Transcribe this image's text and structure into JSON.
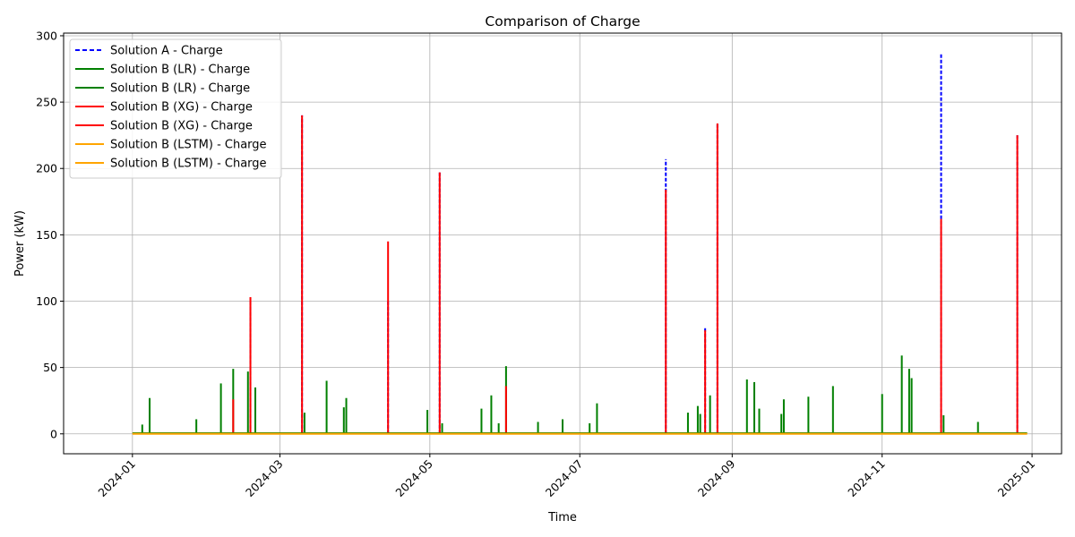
{
  "chart_data": {
    "type": "line",
    "title": "Comparison of Charge",
    "xlabel": "Time",
    "ylabel": "Power (kW)",
    "x_axis": {
      "kind": "date",
      "range": [
        "2023-12-04",
        "2025-01-13"
      ],
      "ticks": [
        "2024-01-01",
        "2024-03-01",
        "2024-05-01",
        "2024-07-01",
        "2024-09-01",
        "2024-11-01",
        "2025-01-01"
      ],
      "tick_labels": [
        "2024-01",
        "2024-03",
        "2024-05",
        "2024-07",
        "2024-09",
        "2024-11",
        "2025-01"
      ]
    },
    "y_axis": {
      "range": [
        -15,
        302
      ],
      "ticks": [
        0,
        50,
        100,
        150,
        200,
        250,
        300
      ],
      "tick_labels": [
        "0",
        "50",
        "100",
        "150",
        "200",
        "250",
        "300"
      ]
    },
    "grid": true,
    "legend_position": "upper-left",
    "legend": [
      {
        "label": "Solution A - Charge",
        "color": "#0000ff",
        "dash": true
      },
      {
        "label": "Solution B (LR) - Charge",
        "color": "#008000",
        "dash": false
      },
      {
        "label": "Solution B (LR) - Charge",
        "color": "#008000",
        "dash": false
      },
      {
        "label": "Solution B (XG) - Charge",
        "color": "#ff0000",
        "dash": false
      },
      {
        "label": "Solution B (XG) - Charge",
        "color": "#ff0000",
        "dash": false
      },
      {
        "label": "Solution B (LSTM) - Charge",
        "color": "#ffa500",
        "dash": false
      },
      {
        "label": "Solution B (LSTM) - Charge",
        "color": "#ffa500",
        "dash": false
      }
    ],
    "series": [
      {
        "name": "Solution A - Charge",
        "color": "#0000ff",
        "style": "dashed",
        "x": [
          "2024-02-18",
          "2024-03-10",
          "2024-04-14",
          "2024-05-05",
          "2024-08-05",
          "2024-08-21",
          "2024-08-26",
          "2024-11-25",
          "2024-12-26"
        ],
        "y": [
          102,
          240,
          101,
          197,
          207,
          80,
          234,
          287,
          225
        ]
      },
      {
        "name": "Solution B (LR) - Charge",
        "color": "#008000",
        "style": "solid",
        "x": [
          "2024-01-05",
          "2024-01-08",
          "2024-01-27",
          "2024-02-06",
          "2024-02-11",
          "2024-02-17",
          "2024-02-20",
          "2024-03-11",
          "2024-03-20",
          "2024-03-27",
          "2024-03-28",
          "2024-04-30",
          "2024-05-06",
          "2024-05-22",
          "2024-05-26",
          "2024-05-29",
          "2024-06-01",
          "2024-06-14",
          "2024-06-24",
          "2024-07-05",
          "2024-07-08",
          "2024-08-14",
          "2024-08-18",
          "2024-08-19",
          "2024-08-23",
          "2024-09-07",
          "2024-09-10",
          "2024-09-12",
          "2024-09-21",
          "2024-09-22",
          "2024-10-02",
          "2024-10-12",
          "2024-11-01",
          "2024-11-09",
          "2024-11-12",
          "2024-11-13",
          "2024-11-26",
          "2024-12-10"
        ],
        "y": [
          7,
          27,
          11,
          38,
          49,
          47,
          35,
          16,
          40,
          20,
          27,
          18,
          8,
          19,
          29,
          8,
          51,
          9,
          11,
          8,
          23,
          16,
          21,
          15,
          29,
          41,
          39,
          19,
          15,
          26,
          28,
          36,
          30,
          59,
          49,
          42,
          14,
          9
        ]
      },
      {
        "name": "Solution B (XG) - Charge",
        "color": "#ff0000",
        "style": "solid",
        "x": [
          "2024-02-11",
          "2024-02-18",
          "2024-03-10",
          "2024-04-14",
          "2024-05-05",
          "2024-06-01",
          "2024-08-05",
          "2024-08-21",
          "2024-08-26",
          "2024-11-25",
          "2024-12-26"
        ],
        "y": [
          26,
          103,
          240,
          145,
          197,
          36,
          184,
          78,
          234,
          162,
          225
        ]
      },
      {
        "name": "Solution B (LSTM) - Charge",
        "color": "#ffa500",
        "style": "solid",
        "x": [
          "2024-01-01",
          "2024-12-30"
        ],
        "y": [
          0.5,
          0.5
        ]
      }
    ]
  }
}
